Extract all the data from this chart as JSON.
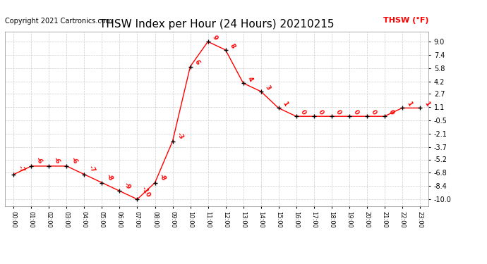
{
  "title": "THSW Index per Hour (24 Hours) 20210215",
  "copyright": "Copyright 2021 Cartronics.com",
  "legend_label": "THSW (°F)",
  "hours": [
    "00:00",
    "01:00",
    "02:00",
    "03:00",
    "04:00",
    "05:00",
    "06:00",
    "07:00",
    "08:00",
    "09:00",
    "10:00",
    "11:00",
    "12:00",
    "13:00",
    "14:00",
    "15:00",
    "16:00",
    "17:00",
    "18:00",
    "19:00",
    "20:00",
    "21:00",
    "22:00",
    "23:00"
  ],
  "values": [
    -7,
    -6,
    -6,
    -6,
    -7,
    -8,
    -9,
    -10,
    -8,
    -3,
    6,
    9,
    8,
    4,
    3,
    1,
    0,
    0,
    0,
    0,
    0,
    0,
    1,
    1
  ],
  "value_labels": [
    "-7",
    "-6",
    "-6",
    "-6",
    "-7",
    "-8",
    "-9",
    "-10",
    "-8",
    "-3",
    "6",
    "9",
    "8",
    "4",
    "3",
    "1",
    "0",
    "0",
    "0",
    "0",
    "0",
    "0",
    "1",
    "1"
  ],
  "yticks": [
    -10.0,
    -8.4,
    -6.8,
    -5.2,
    -3.7,
    -2.1,
    -0.5,
    1.1,
    2.7,
    4.2,
    5.8,
    7.4,
    9.0
  ],
  "ylim": [
    -10.8,
    10.2
  ],
  "line_color": "red",
  "marker_color": "black",
  "label_color": "red",
  "grid_color": "#cccccc",
  "background_color": "white",
  "title_fontsize": 11,
  "copyright_fontsize": 7,
  "legend_fontsize": 8,
  "label_fontsize": 6.5
}
